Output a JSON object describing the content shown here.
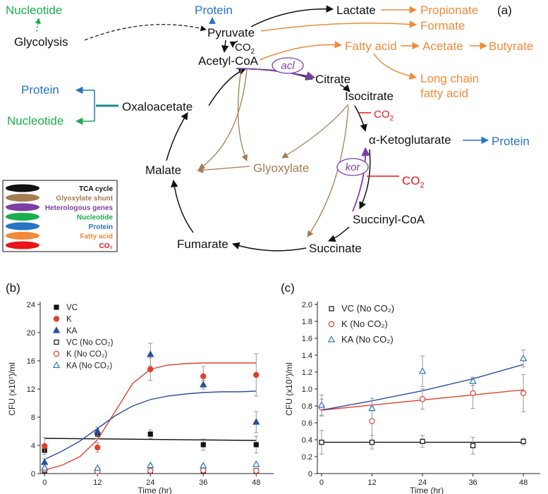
{
  "panels": {
    "a": "(a)",
    "b": "(b)",
    "c": "(c)"
  },
  "colors": {
    "tca": "#111111",
    "glyoxylate": "#a67c52",
    "heterologous": "#7b3fa7",
    "nucleotide": "#1aae4c",
    "protein": "#2a73c4",
    "fatty_acid": "#f08a3a",
    "co2": "#e8141c",
    "teal": "#1b8d8a",
    "series_vc": "#111111",
    "series_k": "#e04030",
    "series_ka": "#2a4f9e"
  },
  "pathway": {
    "nodes": {
      "nucleotide_top": "Nucleotide",
      "glycolysis": "Glycolysis",
      "protein_top": "Protein",
      "pyruvate": "Pyruvate",
      "co2_pyr": "CO",
      "acetyl_coa": "Acetyl-CoA",
      "lactate": "Lactate",
      "propionate": "Propionate",
      "formate": "Formate",
      "fatty_acid": "Fatty acid",
      "acetate": "Acetate",
      "butyrate": "Butyrate",
      "long_chain_1": "Long chain",
      "long_chain_2": "fatty acid",
      "citrate": "Citrate",
      "isocitrate": "Isocitrate",
      "co2_iso": "CO",
      "akg": "α-Ketoglutarate",
      "protein_akg": "Protein",
      "co2_kor": "CO",
      "succinyl_coa": "Succinyl-CoA",
      "succinate": "Succinate",
      "fumarate": "Fumarate",
      "malate": "Malate",
      "glyoxylate": "Glyoxylate",
      "oxaloacetate": "Oxaloacetate",
      "protein_oaa": "Protein",
      "nucleotide_oaa": "Nucleotide",
      "acl": "acl",
      "kor": "kor",
      "sub2": "2"
    },
    "legend": [
      {
        "label": "TCA cycle",
        "color": "#111111"
      },
      {
        "label": "Glyoxylate shunt",
        "color": "#a67c52"
      },
      {
        "label": "Heterologous genes",
        "color": "#7b3fa7"
      },
      {
        "label": "Nucleotide",
        "color": "#1aae4c"
      },
      {
        "label": "Protein",
        "color": "#2a73c4"
      },
      {
        "label": "Fatty acid",
        "color": "#f08a3a"
      },
      {
        "label": "CO₂",
        "color": "#e8141c"
      }
    ]
  },
  "chart_data": [
    {
      "type": "scatter",
      "panel": "(b)",
      "xlabel": "Time (hr)",
      "ylabel": "CFU (x10⁷)/ml",
      "xlim": [
        -1,
        51
      ],
      "ylim": [
        0,
        24
      ],
      "xticks": [
        0,
        12,
        24,
        36,
        48
      ],
      "yticks": [
        0,
        4,
        8,
        12,
        16,
        20,
        24
      ],
      "legend_position": "top-left",
      "series": [
        {
          "name": "VC",
          "marker": "square-filled",
          "color": "#111111",
          "x": [
            0,
            12,
            24,
            36,
            48
          ],
          "y": [
            3.3,
            5.6,
            5.6,
            4.1,
            4.1
          ],
          "err": [
            0.6,
            0.7,
            0.6,
            0.8,
            1.2
          ]
        },
        {
          "name": "K",
          "marker": "circle-filled",
          "color": "#e04030",
          "x": [
            0,
            12,
            24,
            36,
            48
          ],
          "y": [
            3.9,
            3.7,
            14.8,
            13.8,
            14.0
          ],
          "err": [
            1.2,
            0.7,
            1.6,
            1.4,
            3.0
          ]
        },
        {
          "name": "KA",
          "marker": "triangle-filled",
          "color": "#2a4f9e",
          "x": [
            0,
            12,
            24,
            36,
            48
          ],
          "y": [
            1.6,
            6.0,
            16.9,
            12.6,
            7.3
          ],
          "err": [
            0.5,
            0.6,
            1.6,
            0.6,
            1.5
          ]
        },
        {
          "name": "VC (No CO₂)",
          "marker": "square-open",
          "color": "#111111",
          "x": [
            0,
            12,
            24,
            36,
            48
          ],
          "y": [
            0.4,
            0.4,
            0.35,
            0.35,
            0.4
          ],
          "err": [
            0.1,
            0.1,
            0.1,
            0.1,
            0.1
          ]
        },
        {
          "name": "K (No CO₂)",
          "marker": "circle-open",
          "color": "#e04030",
          "x": [
            0,
            12,
            24,
            36,
            48
          ],
          "y": [
            0.6,
            0.3,
            0.4,
            0.45,
            0.4
          ],
          "err": [
            0.1,
            0.1,
            0.1,
            0.1,
            0.1
          ]
        },
        {
          "name": "KA (No CO₂)",
          "marker": "triangle-open",
          "color": "#2a73c4",
          "x": [
            0,
            12,
            24,
            36,
            48
          ],
          "y": [
            0.8,
            0.75,
            1.15,
            1.1,
            1.3
          ],
          "err": [
            0.1,
            0.1,
            0.2,
            0.1,
            0.2
          ]
        }
      ],
      "fits": [
        {
          "series": "VC",
          "color": "#111111",
          "x": [
            0,
            48
          ],
          "y": [
            5.0,
            4.7
          ]
        },
        {
          "series": "K",
          "color": "#e04030",
          "x": [
            0,
            4,
            8,
            12,
            16,
            20,
            24,
            28,
            32,
            36,
            40,
            44,
            48
          ],
          "y": [
            0.5,
            1.2,
            2.4,
            4.8,
            8.8,
            12.8,
            14.8,
            15.4,
            15.6,
            15.7,
            15.7,
            15.7,
            15.7
          ]
        },
        {
          "series": "KA",
          "color": "#2a4f9e",
          "x": [
            0,
            4,
            8,
            12,
            16,
            20,
            24,
            28,
            32,
            36,
            40,
            44,
            48
          ],
          "y": [
            2.0,
            3.2,
            4.6,
            6.4,
            8.2,
            9.6,
            10.5,
            11.0,
            11.3,
            11.5,
            11.6,
            11.6,
            11.7
          ]
        }
      ]
    },
    {
      "type": "scatter",
      "panel": "(c)",
      "xlabel": "Time (hr)",
      "ylabel": "CFU (x10⁷)/ml",
      "xlim": [
        -1,
        51
      ],
      "ylim": [
        0,
        2.0
      ],
      "xticks": [
        0,
        12,
        24,
        36,
        48
      ],
      "yticks": [
        0,
        0.2,
        0.4,
        0.6,
        0.8,
        1.0,
        1.2,
        1.4,
        1.6,
        1.8,
        2.0
      ],
      "ytick_labels": [
        "0",
        "0.2",
        "0.4",
        "0.6",
        "0.8",
        "1.0",
        "1.2",
        "1.4",
        "1.6",
        "1.8",
        "2.0"
      ],
      "legend_position": "top-left",
      "series": [
        {
          "name": "VC (No CO₂)",
          "marker": "square-open",
          "color": "#111111",
          "x": [
            0,
            12,
            24,
            36,
            48
          ],
          "y": [
            0.37,
            0.37,
            0.38,
            0.33,
            0.38
          ],
          "err": [
            0.14,
            0.08,
            0.07,
            0.1,
            0.04
          ]
        },
        {
          "name": "K (No CO₂)",
          "marker": "circle-open",
          "color": "#e04030",
          "x": [
            0,
            12,
            24,
            36,
            48
          ],
          "y": [
            0.78,
            0.62,
            0.88,
            0.95,
            0.95
          ],
          "err": [
            0.1,
            0.17,
            0.12,
            0.18,
            0.22
          ]
        },
        {
          "name": "KA (No CO₂)",
          "marker": "triangle-open",
          "color": "#2a73c4",
          "x": [
            0,
            12,
            24,
            36,
            48
          ],
          "y": [
            0.81,
            0.77,
            1.21,
            1.09,
            1.36
          ],
          "err": [
            0.12,
            0.12,
            0.18,
            0.05,
            0.1
          ]
        }
      ],
      "fits": [
        {
          "series": "VC (No CO₂)",
          "color": "#111111",
          "x": [
            0,
            48
          ],
          "y": [
            0.37,
            0.37
          ]
        },
        {
          "series": "K (No CO₂)",
          "color": "#e04030",
          "x": [
            0,
            12,
            24,
            36,
            48
          ],
          "y": [
            0.75,
            0.81,
            0.87,
            0.93,
            0.99
          ]
        },
        {
          "series": "KA (No CO₂)",
          "color": "#2a4f9e",
          "x": [
            0,
            12,
            24,
            36,
            48
          ],
          "y": [
            0.75,
            0.86,
            0.98,
            1.12,
            1.29
          ]
        }
      ]
    }
  ]
}
